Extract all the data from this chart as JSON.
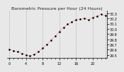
{
  "title": "Barometric Pressure per Hour (24 Hours)",
  "background_color": "#e8e8e8",
  "plot_bg_color": "#e8e8e8",
  "grid_color": "#aaaaaa",
  "line_color": "#ff0000",
  "dot_color": "#000000",
  "hours": [
    0,
    1,
    2,
    3,
    4,
    5,
    6,
    7,
    8,
    9,
    10,
    11,
    12,
    13,
    14,
    15,
    16,
    17,
    18,
    19,
    20,
    21,
    22,
    23
  ],
  "pressure": [
    29.61,
    29.58,
    29.56,
    29.53,
    29.5,
    29.48,
    29.51,
    29.56,
    29.63,
    29.7,
    29.78,
    29.86,
    29.95,
    30.03,
    30.09,
    30.14,
    30.17,
    30.19,
    30.2,
    30.18,
    30.22,
    30.25,
    30.28,
    30.26
  ],
  "ylim_min": 29.44,
  "ylim_max": 30.35,
  "ytick_values": [
    29.5,
    29.6,
    29.7,
    29.8,
    29.9,
    30.0,
    30.1,
    30.2,
    30.3
  ],
  "ytick_labels": [
    "29.5",
    "29.6",
    "29.7",
    "29.8",
    "29.9",
    "30.0",
    "30.1",
    "30.2",
    "30.3"
  ],
  "xtick_major": [
    0,
    4,
    8,
    12,
    16,
    20
  ],
  "title_fontsize": 4.5,
  "tick_fontsize": 3.5,
  "linewidth": 0.5,
  "markersize": 1.8
}
